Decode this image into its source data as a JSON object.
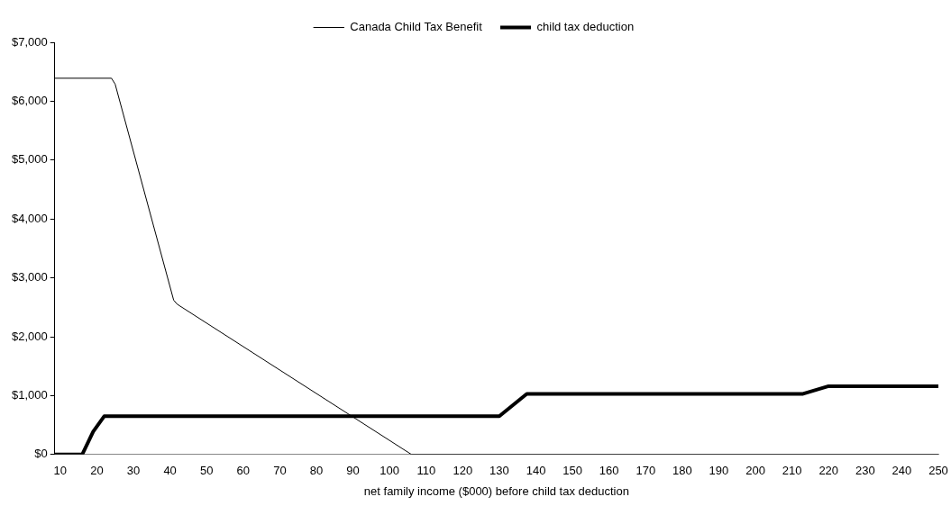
{
  "chart_data": {
    "type": "line",
    "xlabel": "net family income ($000) before child tax deduction",
    "xlim": [
      8.5,
      250
    ],
    "xticks": [
      10,
      20,
      30,
      40,
      50,
      60,
      70,
      80,
      90,
      100,
      110,
      120,
      130,
      140,
      150,
      160,
      170,
      180,
      190,
      200,
      210,
      220,
      230,
      240,
      250
    ],
    "ylim": [
      0,
      7000
    ],
    "yticks": [
      {
        "value": 0,
        "label": "$0"
      },
      {
        "value": 1000,
        "label": "$1,000"
      },
      {
        "value": 2000,
        "label": "$2,000"
      },
      {
        "value": 3000,
        "label": "$3,000"
      },
      {
        "value": 4000,
        "label": "$4,000"
      },
      {
        "value": 5000,
        "label": "$5,000"
      },
      {
        "value": 6000,
        "label": "$6,000"
      },
      {
        "value": 7000,
        "label": "$7,000"
      }
    ],
    "grid": false,
    "legend": "top",
    "marker": "none",
    "line_style": "solid",
    "series": [
      {
        "name": "Canada Child Tax Benefit",
        "color": "#000000",
        "x": [
          8.5,
          24,
          25,
          41,
          42,
          106,
          250
        ],
        "values": [
          6390,
          6390,
          6290,
          2620,
          2550,
          0,
          0
        ]
      },
      {
        "name": "child tax deduction",
        "color": "#000000",
        "x": [
          8.5,
          16,
          19,
          22,
          130,
          137.5,
          213,
          220,
          250
        ],
        "values": [
          0,
          0,
          390,
          650,
          650,
          1030,
          1030,
          1160,
          1160
        ]
      }
    ]
  }
}
